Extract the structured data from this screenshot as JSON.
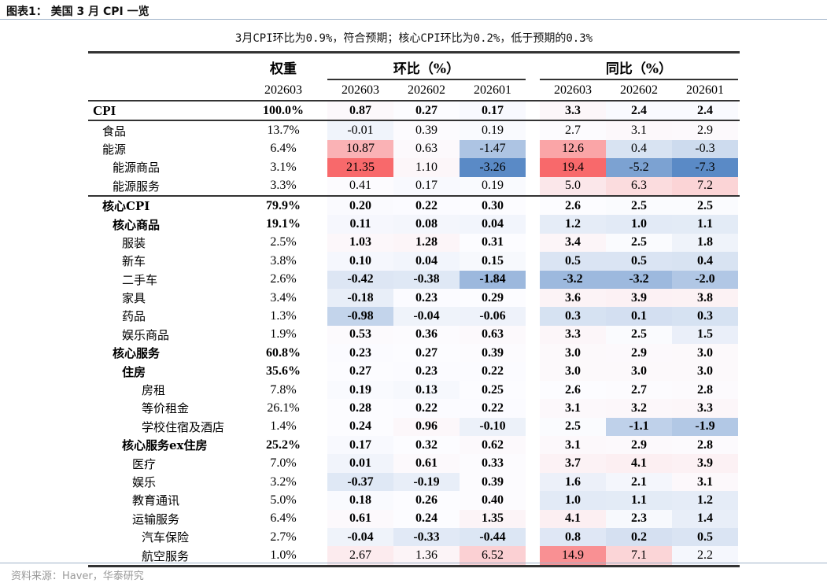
{
  "figure_title": "图表1：  美国 3 月 CPI 一览",
  "subtitle": "3月CPI环比为0.9%，符合预期；核心CPI环比为0.2%，低于预期的0.3%",
  "header": {
    "weight": "权重",
    "mom": "环比（%）",
    "yoy": "同比（%）",
    "weight_period": "202603",
    "periods": [
      "202603",
      "202602",
      "202601"
    ]
  },
  "colors": {
    "high": "#f8696b",
    "mid": "#fcfcff",
    "low": "#5a8ac6"
  },
  "rows": [
    {
      "label": "CPI",
      "weight": "100.0%",
      "mom": [
        "0.87",
        "0.27",
        "0.17"
      ],
      "yoy": [
        "3.3",
        "2.4",
        "2.4"
      ],
      "level": 0,
      "bold_label": true,
      "bold_values": true
    },
    {
      "label": "食品",
      "weight": "13.7%",
      "mom": [
        "-0.01",
        "0.39",
        "0.19"
      ],
      "yoy": [
        "2.7",
        "3.1",
        "2.9"
      ],
      "level": 1,
      "bold_label": false,
      "bold_values": false
    },
    {
      "label": "能源",
      "weight": "6.4%",
      "mom": [
        "10.87",
        "0.63",
        "-1.47"
      ],
      "yoy": [
        "12.6",
        "0.4",
        "-0.3"
      ],
      "level": 1,
      "bold_label": false,
      "bold_values": false
    },
    {
      "label": "能源商品",
      "weight": "3.1%",
      "mom": [
        "21.35",
        "1.10",
        "-3.26"
      ],
      "yoy": [
        "19.4",
        "-5.2",
        "-7.3"
      ],
      "level": 2,
      "bold_label": false,
      "bold_values": false
    },
    {
      "label": "能源服务",
      "weight": "3.3%",
      "mom": [
        "0.41",
        "0.17",
        "0.19"
      ],
      "yoy": [
        "5.0",
        "6.3",
        "7.2"
      ],
      "level": 2,
      "bold_label": false,
      "bold_values": false
    },
    {
      "label": "核心CPI",
      "weight": "79.9%",
      "mom": [
        "0.20",
        "0.22",
        "0.30"
      ],
      "yoy": [
        "2.6",
        "2.5",
        "2.5"
      ],
      "level": 1,
      "bold_label": true,
      "bold_values": true
    },
    {
      "label": "核心商品",
      "weight": "19.1%",
      "mom": [
        "0.11",
        "0.08",
        "0.04"
      ],
      "yoy": [
        "1.2",
        "1.0",
        "1.1"
      ],
      "level": 2,
      "bold_label": true,
      "bold_values": true
    },
    {
      "label": "服装",
      "weight": "2.5%",
      "mom": [
        "1.03",
        "1.28",
        "0.31"
      ],
      "yoy": [
        "3.4",
        "2.5",
        "1.8"
      ],
      "level": 3,
      "bold_label": false,
      "bold_values": true
    },
    {
      "label": "新车",
      "weight": "3.8%",
      "mom": [
        "0.10",
        "0.04",
        "0.15"
      ],
      "yoy": [
        "0.5",
        "0.5",
        "0.4"
      ],
      "level": 3,
      "bold_label": false,
      "bold_values": true
    },
    {
      "label": "二手车",
      "weight": "2.6%",
      "mom": [
        "-0.42",
        "-0.38",
        "-1.84"
      ],
      "yoy": [
        "-3.2",
        "-3.2",
        "-2.0"
      ],
      "level": 3,
      "bold_label": false,
      "bold_values": true
    },
    {
      "label": "家具",
      "weight": "3.4%",
      "mom": [
        "-0.18",
        "0.23",
        "0.29"
      ],
      "yoy": [
        "3.6",
        "3.9",
        "3.8"
      ],
      "level": 3,
      "bold_label": false,
      "bold_values": true
    },
    {
      "label": "药品",
      "weight": "1.3%",
      "mom": [
        "-0.98",
        "-0.04",
        "-0.06"
      ],
      "yoy": [
        "0.3",
        "0.1",
        "0.3"
      ],
      "level": 3,
      "bold_label": false,
      "bold_values": true
    },
    {
      "label": "娱乐商品",
      "weight": "1.9%",
      "mom": [
        "0.53",
        "0.36",
        "0.63"
      ],
      "yoy": [
        "3.3",
        "2.5",
        "1.5"
      ],
      "level": 3,
      "bold_label": false,
      "bold_values": true
    },
    {
      "label": "核心服务",
      "weight": "60.8%",
      "mom": [
        "0.23",
        "0.27",
        "0.39"
      ],
      "yoy": [
        "3.0",
        "2.9",
        "3.0"
      ],
      "level": 2,
      "bold_label": true,
      "bold_values": true
    },
    {
      "label": "住房",
      "weight": "35.6%",
      "mom": [
        "0.27",
        "0.23",
        "0.22"
      ],
      "yoy": [
        "3.0",
        "3.0",
        "3.0"
      ],
      "level": 3,
      "bold_label": true,
      "bold_values": true
    },
    {
      "label": "房租",
      "weight": "7.8%",
      "mom": [
        "0.19",
        "0.13",
        "0.25"
      ],
      "yoy": [
        "2.6",
        "2.7",
        "2.8"
      ],
      "level": 5,
      "bold_label": false,
      "bold_values": true
    },
    {
      "label": "等价租金",
      "weight": "26.1%",
      "mom": [
        "0.28",
        "0.22",
        "0.22"
      ],
      "yoy": [
        "3.1",
        "3.2",
        "3.3"
      ],
      "level": 5,
      "bold_label": false,
      "bold_values": true
    },
    {
      "label": "学校住宿及酒店",
      "weight": "1.4%",
      "mom": [
        "0.24",
        "0.96",
        "-0.10"
      ],
      "yoy": [
        "2.5",
        "-1.1",
        "-1.9"
      ],
      "level": 5,
      "bold_label": false,
      "bold_values": true
    },
    {
      "label": "核心服务ex住房",
      "weight": "25.2%",
      "mom": [
        "0.17",
        "0.32",
        "0.62"
      ],
      "yoy": [
        "3.1",
        "2.9",
        "2.8"
      ],
      "level": 3,
      "bold_label": true,
      "bold_values": true
    },
    {
      "label": "医疗",
      "weight": "7.0%",
      "mom": [
        "0.01",
        "0.61",
        "0.33"
      ],
      "yoy": [
        "3.7",
        "4.1",
        "3.9"
      ],
      "level": 4,
      "bold_label": false,
      "bold_values": true
    },
    {
      "label": "娱乐",
      "weight": "3.2%",
      "mom": [
        "-0.37",
        "-0.19",
        "0.39"
      ],
      "yoy": [
        "1.6",
        "2.1",
        "3.1"
      ],
      "level": 4,
      "bold_label": false,
      "bold_values": true
    },
    {
      "label": "教育通讯",
      "weight": "5.0%",
      "mom": [
        "0.18",
        "0.26",
        "0.40"
      ],
      "yoy": [
        "1.0",
        "1.1",
        "1.2"
      ],
      "level": 4,
      "bold_label": false,
      "bold_values": true
    },
    {
      "label": "运输服务",
      "weight": "6.4%",
      "mom": [
        "0.61",
        "0.24",
        "1.35"
      ],
      "yoy": [
        "4.1",
        "2.3",
        "1.4"
      ],
      "level": 4,
      "bold_label": false,
      "bold_values": true
    },
    {
      "label": "汽车保险",
      "weight": "2.7%",
      "mom": [
        "-0.04",
        "-0.33",
        "-0.44"
      ],
      "yoy": [
        "0.8",
        "0.2",
        "0.5"
      ],
      "level": 5,
      "bold_label": false,
      "bold_values": true
    },
    {
      "label": "航空服务",
      "weight": "1.0%",
      "mom": [
        "2.67",
        "1.36",
        "6.52"
      ],
      "yoy": [
        "14.9",
        "7.1",
        "2.2"
      ],
      "level": 5,
      "bold_label": false,
      "bold_values": false
    }
  ],
  "source": "资料来源：Haver，华泰研究"
}
